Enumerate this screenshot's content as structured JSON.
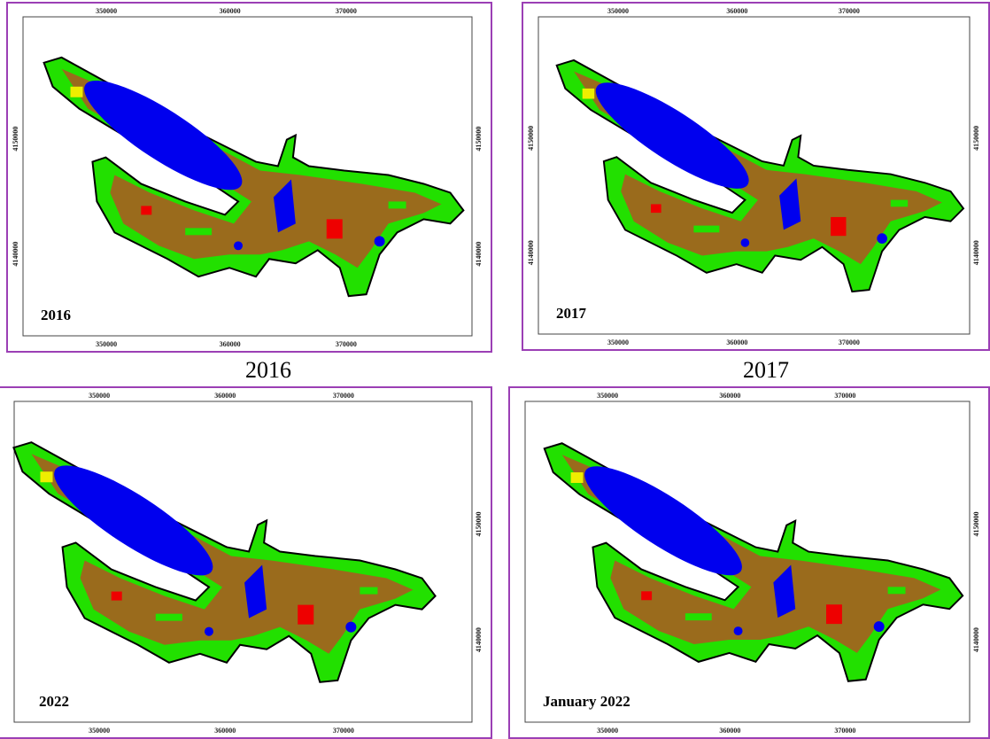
{
  "panels": [
    {
      "label": "2016",
      "top_ticks": [
        "350000",
        "360000",
        "370000"
      ],
      "bottom_ticks": [
        "350000",
        "360000",
        "370000"
      ],
      "left_ticks": [
        "4150000",
        "4140000"
      ],
      "right_ticks": [
        "4150000",
        "4140000"
      ]
    },
    {
      "label": "2017",
      "top_ticks": [
        "350000",
        "360000",
        "370000"
      ],
      "bottom_ticks": [
        "350000",
        "360000",
        "370000"
      ],
      "left_ticks": [
        "4150000",
        "4140000"
      ],
      "right_ticks": [
        "4150000",
        "4140000"
      ]
    },
    {
      "label": "2022",
      "top_ticks": [
        "350000",
        "360000",
        "370000"
      ],
      "bottom_ticks": [
        "350000",
        "360000",
        "370000"
      ],
      "left_ticks": [],
      "right_ticks": [
        "4150000",
        "4140000"
      ]
    },
    {
      "label": "January 2022",
      "top_ticks": [
        "350000",
        "360000",
        "370000"
      ],
      "bottom_ticks": [
        "350000",
        "360000",
        "370000"
      ],
      "left_ticks": [],
      "right_ticks": [
        "4150000",
        "4140000"
      ]
    }
  ],
  "captions": [
    "2016",
    "2017"
  ]
}
